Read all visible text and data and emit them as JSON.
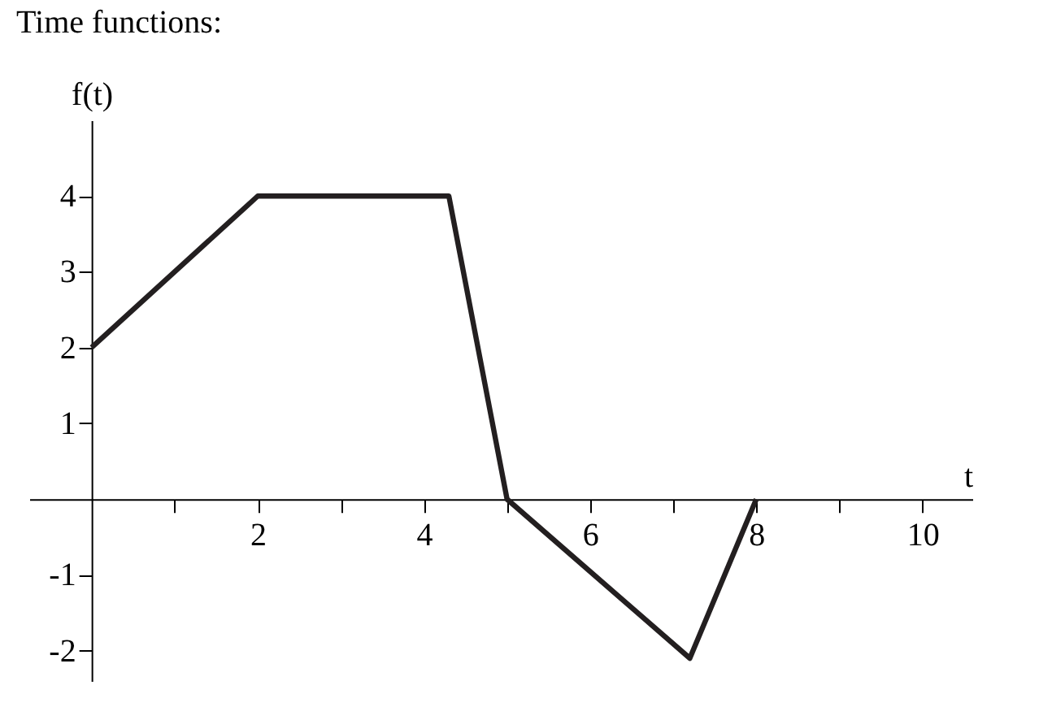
{
  "chart_data": {
    "type": "line",
    "title": "Time functions:",
    "xlabel": "t",
    "ylabel": "f(t)",
    "x": [
      0,
      2,
      4.3,
      5,
      7.2,
      8
    ],
    "series": [
      {
        "color": "#231f20",
        "values": [
          2,
          4,
          4,
          0,
          -2.1,
          0
        ]
      }
    ],
    "xlim": [
      -0.75,
      10.6
    ],
    "ylim": [
      -2.4,
      5
    ],
    "xticks": [
      {
        "value": 1,
        "label": null
      },
      2,
      {
        "value": 3,
        "label": null
      },
      4,
      {
        "value": 5,
        "label": null
      },
      6,
      {
        "value": 7,
        "label": null
      },
      8,
      {
        "value": 9,
        "label": null
      },
      10
    ],
    "yticks": [
      -2,
      -1,
      1,
      2,
      3,
      4
    ],
    "grid": false,
    "line_style": "solid"
  }
}
